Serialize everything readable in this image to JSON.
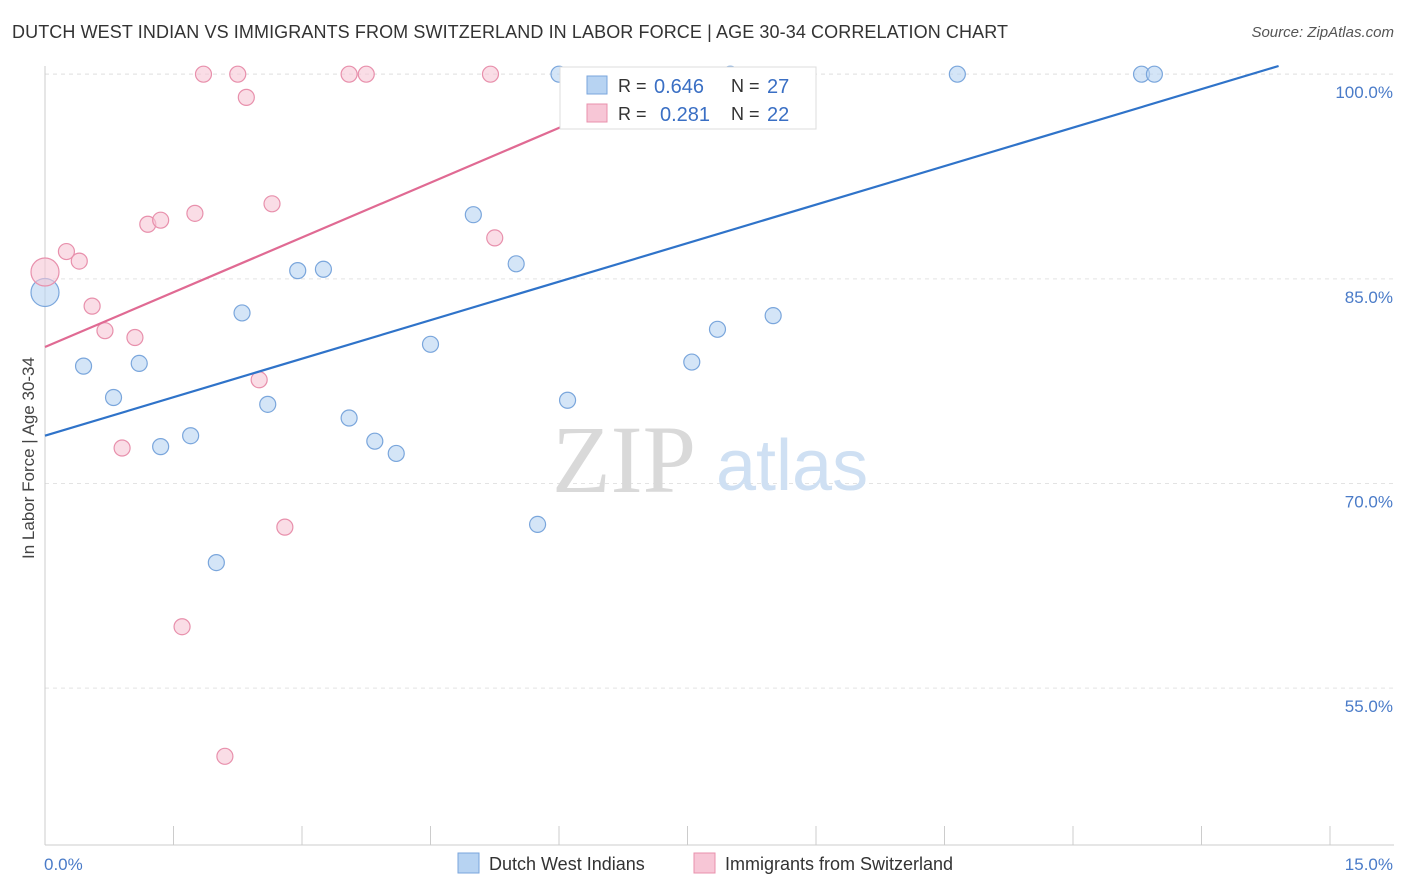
{
  "header": {
    "title": "DUTCH WEST INDIAN VS IMMIGRANTS FROM SWITZERLAND IN LABOR FORCE | AGE 30-34 CORRELATION CHART",
    "source": "Source: ZipAtlas.com"
  },
  "watermark": {
    "zip": "ZIP",
    "atlas": "atlas"
  },
  "colors": {
    "blue_fill": "#b7d3f2",
    "blue_stroke": "#7aa6dc",
    "blue_line": "#2f73c9",
    "pink_fill": "#f7c6d6",
    "pink_stroke": "#e890ac",
    "pink_line": "#e06a93"
  },
  "chart_data": {
    "type": "scatter",
    "title": "DUTCH WEST INDIAN VS IMMIGRANTS FROM SWITZERLAND IN LABOR FORCE | AGE 30-34 CORRELATION CHART",
    "xlabel": "",
    "ylabel": "In Labor Force | Age 30-34",
    "xlim": [
      0,
      15
    ],
    "ylim": [
      43.5,
      100.6
    ],
    "x_tick_labels": [
      "0.0%",
      "15.0%"
    ],
    "y_ticks": [
      55,
      70,
      85,
      100
    ],
    "y_tick_labels": [
      "55.0%",
      "70.0%",
      "85.0%",
      "100.0%"
    ],
    "grid": true,
    "legend_position": "bottom",
    "stats": [
      {
        "r_label": "R =",
        "r": "0.646",
        "n_label": "N =",
        "n": "27"
      },
      {
        "r_label": "R =",
        "r": "0.281",
        "n_label": "N =",
        "n": "22"
      }
    ],
    "series": [
      {
        "name": "Dutch West Indians",
        "color": "blue",
        "trend": {
          "x": [
            0,
            14.4
          ],
          "y": [
            73.5,
            100.6
          ]
        },
        "points": [
          {
            "x": 0.0,
            "y": 84.0,
            "big": true
          },
          {
            "x": 0.45,
            "y": 78.6
          },
          {
            "x": 0.8,
            "y": 76.3
          },
          {
            "x": 1.1,
            "y": 78.8
          },
          {
            "x": 1.35,
            "y": 72.7
          },
          {
            "x": 1.7,
            "y": 73.5
          },
          {
            "x": 2.0,
            "y": 64.2
          },
          {
            "x": 2.3,
            "y": 82.5
          },
          {
            "x": 2.6,
            "y": 75.8
          },
          {
            "x": 2.95,
            "y": 85.6
          },
          {
            "x": 3.25,
            "y": 85.7
          },
          {
            "x": 3.55,
            "y": 74.8
          },
          {
            "x": 3.85,
            "y": 73.1
          },
          {
            "x": 4.1,
            "y": 72.2
          },
          {
            "x": 4.5,
            "y": 80.2
          },
          {
            "x": 5.0,
            "y": 89.7
          },
          {
            "x": 5.5,
            "y": 86.1
          },
          {
            "x": 5.75,
            "y": 67.0
          },
          {
            "x": 6.0,
            "y": 100.0
          },
          {
            "x": 6.1,
            "y": 76.1
          },
          {
            "x": 7.55,
            "y": 78.9
          },
          {
            "x": 7.85,
            "y": 81.3
          },
          {
            "x": 8.0,
            "y": 100.0
          },
          {
            "x": 8.5,
            "y": 82.3
          },
          {
            "x": 10.65,
            "y": 100.0
          },
          {
            "x": 12.8,
            "y": 100.0
          },
          {
            "x": 12.95,
            "y": 100.0
          }
        ]
      },
      {
        "name": "Immigrants from Switzerland",
        "color": "pink",
        "trend": {
          "x": [
            0,
            6.2
          ],
          "y": [
            80.0,
            96.6
          ]
        },
        "points": [
          {
            "x": 0.0,
            "y": 85.5,
            "big": true
          },
          {
            "x": 0.25,
            "y": 87.0
          },
          {
            "x": 0.4,
            "y": 86.3
          },
          {
            "x": 0.55,
            "y": 83.0
          },
          {
            "x": 0.7,
            "y": 81.2
          },
          {
            "x": 0.9,
            "y": 72.6
          },
          {
            "x": 1.05,
            "y": 80.7
          },
          {
            "x": 1.2,
            "y": 89.0
          },
          {
            "x": 1.35,
            "y": 89.3
          },
          {
            "x": 1.6,
            "y": 59.5
          },
          {
            "x": 1.75,
            "y": 89.8
          },
          {
            "x": 1.85,
            "y": 100.0
          },
          {
            "x": 2.1,
            "y": 50.0
          },
          {
            "x": 2.25,
            "y": 100.0
          },
          {
            "x": 2.35,
            "y": 98.3
          },
          {
            "x": 2.5,
            "y": 77.6
          },
          {
            "x": 2.65,
            "y": 90.5
          },
          {
            "x": 2.8,
            "y": 66.8
          },
          {
            "x": 3.55,
            "y": 100.0
          },
          {
            "x": 3.75,
            "y": 100.0
          },
          {
            "x": 5.2,
            "y": 100.0
          },
          {
            "x": 5.25,
            "y": 88.0
          }
        ]
      }
    ]
  }
}
